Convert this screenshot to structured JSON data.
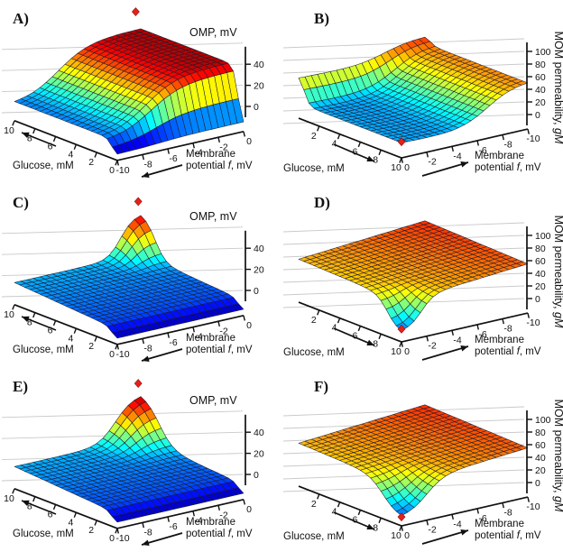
{
  "figure": {
    "background": "#ffffff",
    "columns": 2,
    "rows": 3,
    "colors": {
      "marker": "#e32219",
      "marker_edge": "#8f0e0e",
      "mesh_edge": "#1c1c30",
      "axis": "#111111",
      "backline": "#c9c9c9",
      "text": "#111111"
    },
    "grid": {
      "n_g": 21,
      "n_f": 21
    }
  },
  "chart_data": [
    {
      "panel": "A",
      "label": "A)",
      "side": "left",
      "type": "surface3d",
      "z_axis": {
        "label": "OMP, mV",
        "ticks": [
          0,
          20,
          40
        ]
      },
      "glucose_axis": {
        "label": "Glucose, mM",
        "ticks": [
          0,
          2,
          4,
          6,
          8,
          10
        ],
        "range": [
          0,
          10
        ]
      },
      "membrane_axis": {
        "label_line1": "Membrane",
        "label_line2_parts": [
          "potential ",
          "f",
          ", mV"
        ],
        "ticks": [
          0,
          -2,
          -4,
          -6,
          -8,
          -10
        ],
        "range": [
          0,
          -10
        ]
      },
      "color_range": [
        -2,
        58
      ],
      "surface": {
        "c0": 0,
        "tg": 0,
        "tf": 0,
        "terms": [
          {
            "a": 11,
            "g": {
              "c": 0.55,
              "w": 0.22
            }
          },
          {
            "a": 44,
            "g": {
              "c": 0.55,
              "w": 0.22
            },
            "f": {
              "c": -6.5,
              "w": 1.2
            }
          }
        ]
      },
      "marker": {
        "g": 10,
        "f": -0.4,
        "z": 72
      },
      "features": {
        "low_plateau_mV": 11,
        "high_plateau_mV": 55,
        "glucose_threshold_mM": 0.55,
        "potential_threshold_mV": -6.5
      }
    },
    {
      "panel": "B",
      "label": "B)",
      "side": "right",
      "type": "surface3d",
      "z_axis": {
        "label_parts": [
          "MOM permeability, ",
          "gM"
        ],
        "ticks": [
          0,
          20,
          40,
          60,
          80,
          100
        ]
      },
      "glucose_axis": {
        "label": "Glucose, mM",
        "ticks": [
          2,
          4,
          6,
          8,
          10
        ],
        "range": [
          0,
          10
        ]
      },
      "membrane_axis": {
        "label_line1": "Membrane",
        "label_line2_parts": [
          "potential ",
          "f",
          ", mV"
        ],
        "ticks": [
          0,
          -2,
          -4,
          -6,
          -8,
          -10
        ],
        "range": [
          0,
          -10
        ]
      },
      "color_range": [
        -15,
        110
      ],
      "surface": {
        "c0": 100,
        "tg": 0,
        "tf": 0.9,
        "terms": [
          {
            "a": -28,
            "f": {
              "c": -6.8,
              "w": 1.1
            }
          },
          {
            "a": -40,
            "g": {
              "c": 0.55,
              "w": 0.25
            },
            "f": {
              "c": -6.8,
              "w": 1.1
            }
          },
          {
            "a": -10,
            "g": {
              "c": 0.55,
              "w": 0.25
            }
          }
        ]
      },
      "marker": {
        "g": 10,
        "f": 0,
        "z": 24
      },
      "features": {
        "high_plateau_gM": 90,
        "basin_gM": 22,
        "glucose_threshold_mM": 0.55,
        "potential_threshold_mV": -6.8
      }
    },
    {
      "panel": "C",
      "label": "C)",
      "side": "left",
      "type": "surface3d",
      "z_axis": {
        "label": "OMP, mV",
        "ticks": [
          0,
          20,
          40
        ]
      },
      "glucose_axis": {
        "label": "Glucose, mM",
        "ticks": [
          0,
          2,
          4,
          6,
          8,
          10
        ],
        "range": [
          0,
          10
        ]
      },
      "membrane_axis": {
        "label_line1": "Membrane",
        "label_line2_parts": [
          "potential ",
          "f",
          ", mV"
        ],
        "ticks": [
          0,
          -2,
          -4,
          -6,
          -8,
          -10
        ],
        "range": [
          0,
          -10
        ]
      },
      "color_range": [
        -2,
        58
      ],
      "surface": {
        "c0": 0,
        "tg": 0.7,
        "tf": 0,
        "terms": [
          {
            "a": 9,
            "g": {
              "c": 0.55,
              "w": 0.25
            }
          },
          {
            "a": 40,
            "g": {
              "c": 8.6,
              "w": 0.5
            },
            "f": {
              "c": -1.6,
              "w": 0.5
            }
          }
        ]
      },
      "marker": {
        "g": 10,
        "f": -0.2,
        "z": 66
      },
      "features": {
        "base_level_mV": 16,
        "peak_mV": 52,
        "peak_at": {
          "glucose_mM": 10,
          "potential_mV": 0
        }
      }
    },
    {
      "panel": "D",
      "label": "D)",
      "side": "right",
      "type": "surface3d",
      "z_axis": {
        "label_parts": [
          "MOM permeability, ",
          "gM"
        ],
        "ticks": [
          0,
          20,
          40,
          60,
          80,
          100
        ]
      },
      "glucose_axis": {
        "label": "Glucose, mM",
        "ticks": [
          2,
          4,
          6,
          8,
          10
        ],
        "range": [
          0,
          10
        ]
      },
      "membrane_axis": {
        "label_line1": "Membrane",
        "label_line2_parts": [
          "potential ",
          "f",
          ", mV"
        ],
        "ticks": [
          0,
          -2,
          -4,
          -6,
          -8,
          -10
        ],
        "range": [
          0,
          -10
        ]
      },
      "color_range": [
        -15,
        110
      ],
      "surface": {
        "c0": 72,
        "tg": -0.6,
        "tf": -1.7,
        "terms": [
          {
            "a": -56,
            "g": {
              "c": 8.6,
              "w": 0.5
            },
            "f": {
              "c": -1.6,
              "w": 0.5
            }
          }
        ]
      },
      "marker": {
        "g": 10,
        "f": 0,
        "z": 18
      },
      "features": {
        "high_plateau_gM": 88,
        "dip_gM": 16,
        "dip_at": {
          "glucose_mM": 10,
          "potential_mV": 0
        }
      }
    },
    {
      "panel": "E",
      "label": "E)",
      "side": "left",
      "type": "surface3d",
      "z_axis": {
        "label": "OMP, mV",
        "ticks": [
          0,
          20,
          40
        ]
      },
      "glucose_axis": {
        "label": "Glucose, mM",
        "ticks": [
          0,
          2,
          4,
          6,
          8,
          10
        ],
        "range": [
          0,
          10
        ]
      },
      "membrane_axis": {
        "label_line1": "Membrane",
        "label_line2_parts": [
          "potential ",
          "f",
          ", mV"
        ],
        "ticks": [
          0,
          -2,
          -4,
          -6,
          -8,
          -10
        ],
        "range": [
          0,
          -10
        ]
      },
      "color_range": [
        -2,
        58
      ],
      "surface": {
        "c0": 0,
        "tg": 0.7,
        "tf": 0,
        "terms": [
          {
            "a": 9,
            "g": {
              "c": 0.55,
              "w": 0.25
            }
          },
          {
            "a": 44,
            "g": {
              "c": 8.2,
              "w": 0.68
            },
            "f": {
              "c": -2.0,
              "w": 0.68
            }
          }
        ]
      },
      "marker": {
        "g": 10,
        "f": -0.2,
        "z": 68
      },
      "features": {
        "base_level_mV": 16,
        "peak_mV": 55,
        "peak_at": {
          "glucose_mM": 10,
          "potential_mV": 0
        }
      }
    },
    {
      "panel": "F",
      "label": "F)",
      "side": "right",
      "type": "surface3d",
      "z_axis": {
        "label_parts": [
          "MOM permeability, ",
          "gM"
        ],
        "ticks": [
          0,
          20,
          40,
          60,
          80,
          100
        ]
      },
      "glucose_axis": {
        "label": "Glucose, mM",
        "ticks": [
          2,
          4,
          6,
          8,
          10
        ],
        "range": [
          0,
          10
        ]
      },
      "membrane_axis": {
        "label_line1": "Membrane",
        "label_line2_parts": [
          "potential ",
          "f",
          ", mV"
        ],
        "ticks": [
          0,
          -2,
          -4,
          -6,
          -8,
          -10
        ],
        "range": [
          0,
          -10
        ]
      },
      "color_range": [
        -15,
        110
      ],
      "surface": {
        "c0": 72,
        "tg": -0.6,
        "tf": -1.7,
        "terms": [
          {
            "a": -60,
            "g": {
              "c": 8.2,
              "w": 0.7
            },
            "f": {
              "c": -2.0,
              "w": 0.7
            }
          }
        ]
      },
      "marker": {
        "g": 10,
        "f": 0,
        "z": 11
      },
      "features": {
        "high_plateau_gM": 88,
        "dip_gM": 12,
        "dip_at": {
          "glucose_mM": 10,
          "potential_mV": 0
        }
      }
    }
  ]
}
